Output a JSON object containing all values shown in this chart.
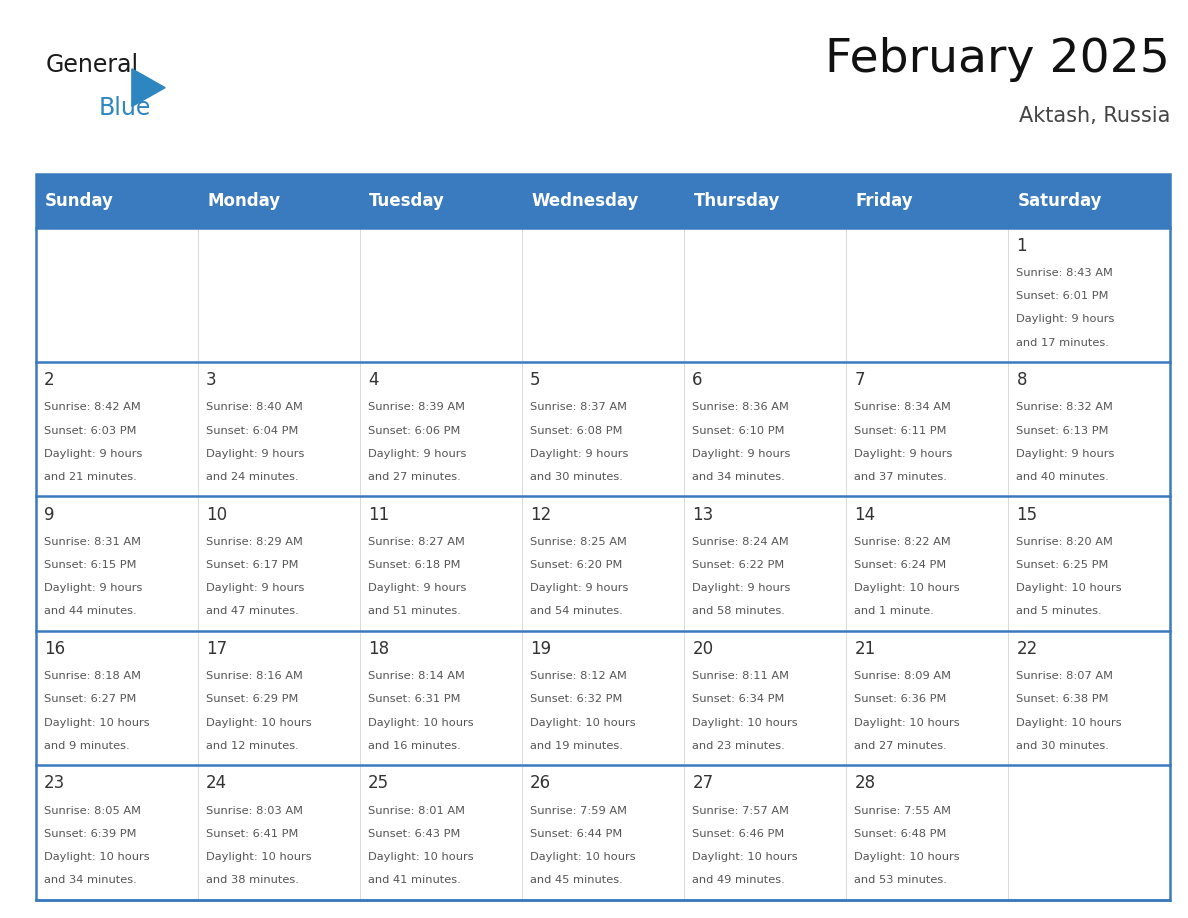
{
  "title": "February 2025",
  "subtitle": "Aktash, Russia",
  "days_of_week": [
    "Sunday",
    "Monday",
    "Tuesday",
    "Wednesday",
    "Thursday",
    "Friday",
    "Saturday"
  ],
  "header_bg": "#3a7abf",
  "header_text_color": "#ffffff",
  "cell_bg": "#ffffff",
  "grid_line_color": "#3a7abf",
  "text_color": "#555555",
  "day_num_color": "#333333",
  "logo_general_color": "#1a1a1a",
  "logo_blue_color": "#2e86c1",
  "logo_triangle_color": "#2e86c1",
  "calendar_data": [
    [
      null,
      null,
      null,
      null,
      null,
      null,
      {
        "day": 1,
        "sunrise": "8:43 AM",
        "sunset": "6:01 PM",
        "daylight": "9 hours and 17 minutes."
      }
    ],
    [
      {
        "day": 2,
        "sunrise": "8:42 AM",
        "sunset": "6:03 PM",
        "daylight": "9 hours and 21 minutes."
      },
      {
        "day": 3,
        "sunrise": "8:40 AM",
        "sunset": "6:04 PM",
        "daylight": "9 hours and 24 minutes."
      },
      {
        "day": 4,
        "sunrise": "8:39 AM",
        "sunset": "6:06 PM",
        "daylight": "9 hours and 27 minutes."
      },
      {
        "day": 5,
        "sunrise": "8:37 AM",
        "sunset": "6:08 PM",
        "daylight": "9 hours and 30 minutes."
      },
      {
        "day": 6,
        "sunrise": "8:36 AM",
        "sunset": "6:10 PM",
        "daylight": "9 hours and 34 minutes."
      },
      {
        "day": 7,
        "sunrise": "8:34 AM",
        "sunset": "6:11 PM",
        "daylight": "9 hours and 37 minutes."
      },
      {
        "day": 8,
        "sunrise": "8:32 AM",
        "sunset": "6:13 PM",
        "daylight": "9 hours and 40 minutes."
      }
    ],
    [
      {
        "day": 9,
        "sunrise": "8:31 AM",
        "sunset": "6:15 PM",
        "daylight": "9 hours and 44 minutes."
      },
      {
        "day": 10,
        "sunrise": "8:29 AM",
        "sunset": "6:17 PM",
        "daylight": "9 hours and 47 minutes."
      },
      {
        "day": 11,
        "sunrise": "8:27 AM",
        "sunset": "6:18 PM",
        "daylight": "9 hours and 51 minutes."
      },
      {
        "day": 12,
        "sunrise": "8:25 AM",
        "sunset": "6:20 PM",
        "daylight": "9 hours and 54 minutes."
      },
      {
        "day": 13,
        "sunrise": "8:24 AM",
        "sunset": "6:22 PM",
        "daylight": "9 hours and 58 minutes."
      },
      {
        "day": 14,
        "sunrise": "8:22 AM",
        "sunset": "6:24 PM",
        "daylight": "10 hours and 1 minute."
      },
      {
        "day": 15,
        "sunrise": "8:20 AM",
        "sunset": "6:25 PM",
        "daylight": "10 hours and 5 minutes."
      }
    ],
    [
      {
        "day": 16,
        "sunrise": "8:18 AM",
        "sunset": "6:27 PM",
        "daylight": "10 hours and 9 minutes."
      },
      {
        "day": 17,
        "sunrise": "8:16 AM",
        "sunset": "6:29 PM",
        "daylight": "10 hours and 12 minutes."
      },
      {
        "day": 18,
        "sunrise": "8:14 AM",
        "sunset": "6:31 PM",
        "daylight": "10 hours and 16 minutes."
      },
      {
        "day": 19,
        "sunrise": "8:12 AM",
        "sunset": "6:32 PM",
        "daylight": "10 hours and 19 minutes."
      },
      {
        "day": 20,
        "sunrise": "8:11 AM",
        "sunset": "6:34 PM",
        "daylight": "10 hours and 23 minutes."
      },
      {
        "day": 21,
        "sunrise": "8:09 AM",
        "sunset": "6:36 PM",
        "daylight": "10 hours and 27 minutes."
      },
      {
        "day": 22,
        "sunrise": "8:07 AM",
        "sunset": "6:38 PM",
        "daylight": "10 hours and 30 minutes."
      }
    ],
    [
      {
        "day": 23,
        "sunrise": "8:05 AM",
        "sunset": "6:39 PM",
        "daylight": "10 hours and 34 minutes."
      },
      {
        "day": 24,
        "sunrise": "8:03 AM",
        "sunset": "6:41 PM",
        "daylight": "10 hours and 38 minutes."
      },
      {
        "day": 25,
        "sunrise": "8:01 AM",
        "sunset": "6:43 PM",
        "daylight": "10 hours and 41 minutes."
      },
      {
        "day": 26,
        "sunrise": "7:59 AM",
        "sunset": "6:44 PM",
        "daylight": "10 hours and 45 minutes."
      },
      {
        "day": 27,
        "sunrise": "7:57 AM",
        "sunset": "6:46 PM",
        "daylight": "10 hours and 49 minutes."
      },
      {
        "day": 28,
        "sunrise": "7:55 AM",
        "sunset": "6:48 PM",
        "daylight": "10 hours and 53 minutes."
      },
      null
    ]
  ]
}
